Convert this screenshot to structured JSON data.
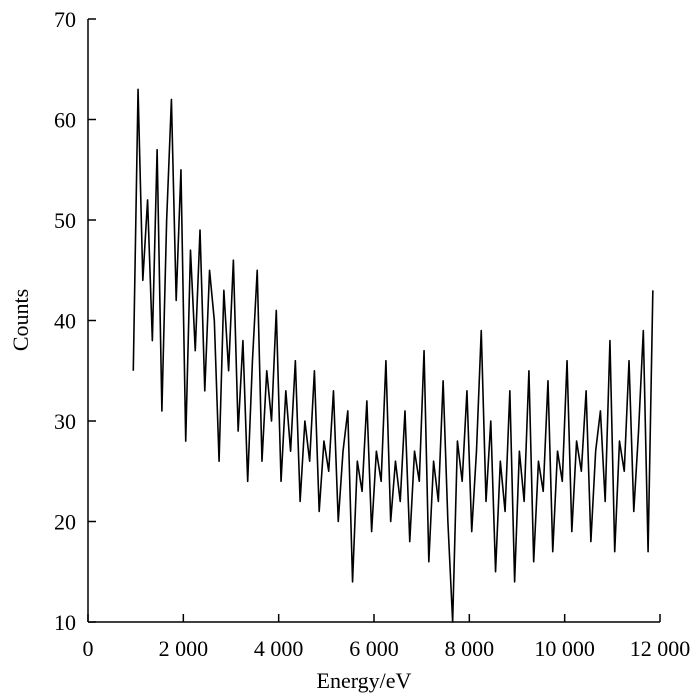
{
  "chart_data": {
    "type": "line",
    "x_label": "Energy/eV",
    "y_label": "Counts",
    "color": "#000000",
    "x": [
      950,
      1050,
      1150,
      1250,
      1350,
      1450,
      1550,
      1650,
      1750,
      1850,
      1950,
      2050,
      2150,
      2250,
      2350,
      2450,
      2550,
      2650,
      2750,
      2850,
      2950,
      3050,
      3150,
      3250,
      3350,
      3450,
      3550,
      3650,
      3750,
      3850,
      3950,
      4050,
      4150,
      4250,
      4350,
      4450,
      4550,
      4650,
      4750,
      4850,
      4950,
      5050,
      5150,
      5250,
      5350,
      5450,
      5550,
      5650,
      5750,
      5850,
      5950,
      6050,
      6150,
      6250,
      6350,
      6450,
      6550,
      6650,
      6750,
      6850,
      6950,
      7050,
      7150,
      7250,
      7350,
      7450,
      7550,
      7650,
      7750,
      7850,
      7950,
      8050,
      8150,
      8250,
      8350,
      8450,
      8550,
      8650,
      8750,
      8850,
      8950,
      9050,
      9150,
      9250,
      9350,
      9450,
      9550,
      9650,
      9750,
      9850,
      9950,
      10050,
      10150,
      10250,
      10350,
      10450,
      10550,
      10650,
      10750,
      10850,
      10950,
      11050,
      11150,
      11250,
      11350,
      11450,
      11550,
      11650,
      11750,
      11850
    ],
    "values": [
      35,
      63,
      44,
      52,
      38,
      57,
      31,
      50,
      62,
      42,
      55,
      28,
      47,
      37,
      49,
      33,
      45,
      40,
      26,
      43,
      35,
      46,
      29,
      38,
      24,
      36,
      45,
      26,
      35,
      30,
      41,
      24,
      33,
      27,
      36,
      22,
      30,
      26,
      35,
      21,
      28,
      25,
      33,
      20,
      27,
      31,
      14,
      26,
      23,
      32,
      19,
      27,
      24,
      36,
      20,
      26,
      22,
      31,
      18,
      27,
      24,
      37,
      16,
      26,
      22,
      34,
      20,
      10,
      28,
      24,
      33,
      19,
      27,
      39,
      22,
      30,
      15,
      26,
      21,
      33,
      14,
      27,
      22,
      35,
      16,
      26,
      23,
      34,
      17,
      27,
      24,
      36,
      19,
      28,
      25,
      33,
      18,
      27,
      31,
      22,
      38,
      17,
      28,
      25,
      36,
      21,
      29,
      39,
      17,
      43
    ],
    "xlim": [
      0,
      12000
    ],
    "xticks": [
      0,
      {
        "value": 2000,
        "label": "2 000"
      },
      {
        "value": 4000,
        "label": "4 000"
      },
      {
        "value": 6000,
        "label": "6 000"
      },
      {
        "value": 8000,
        "label": "8 000"
      },
      {
        "value": 10000,
        "label": "10 000"
      },
      {
        "value": 12000,
        "label": "12 000"
      }
    ],
    "ylim": [
      10,
      70
    ],
    "yticks": [
      10,
      20,
      30,
      40,
      50,
      60,
      70
    ]
  }
}
